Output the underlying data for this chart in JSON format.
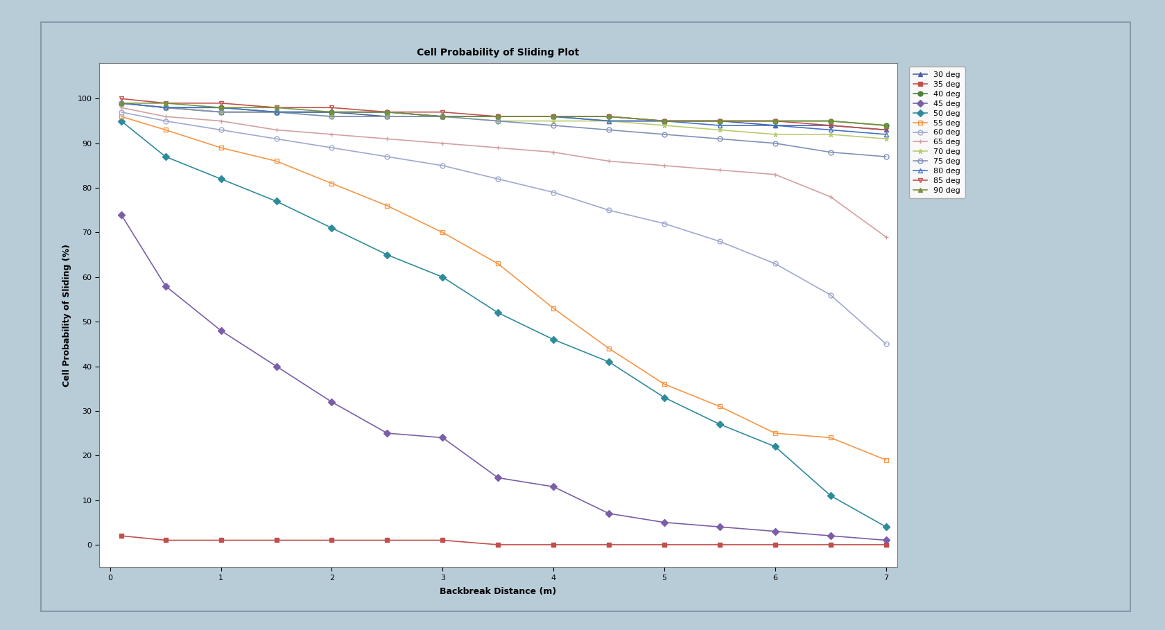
{
  "title": "Cell Probability of Sliding Plot",
  "xlabel": "Backbreak Distance (m)",
  "ylabel": "Cell Probability of Sliding (%)",
  "background_outer": "#b8ccd8",
  "background_inner": "#ffffff",
  "xlim": [
    -0.1,
    7.1
  ],
  "ylim": [
    -5,
    108
  ],
  "yticks": [
    0,
    10,
    20,
    30,
    40,
    50,
    60,
    70,
    80,
    90,
    100
  ],
  "xticks": [
    0,
    1,
    2,
    3,
    4,
    5,
    6,
    7
  ],
  "series": [
    {
      "label": "30 deg",
      "color": "#4a5fa5",
      "marker": "^",
      "markerfacecolor": "#4a5fa5",
      "markeredgecolor": "#4a5fa5",
      "x": [
        0.1,
        0.5,
        1.0,
        1.5,
        2.0,
        2.5,
        3.0,
        3.5,
        4.0,
        4.5,
        5.0,
        5.5,
        6.0,
        6.5,
        7.0
      ],
      "y": [
        99,
        98,
        97,
        97,
        97,
        96,
        96,
        96,
        96,
        95,
        95,
        95,
        94,
        94,
        93
      ]
    },
    {
      "label": "35 deg",
      "color": "#c0504d",
      "marker": "s",
      "markerfacecolor": "#c0504d",
      "markeredgecolor": "#c0504d",
      "x": [
        0.1,
        0.5,
        1.0,
        1.5,
        2.0,
        2.5,
        3.0,
        3.5,
        4.0,
        4.5,
        5.0,
        5.5,
        6.0,
        6.5,
        7.0
      ],
      "y": [
        2,
        1,
        1,
        1,
        1,
        1,
        1,
        0,
        0,
        0,
        0,
        0,
        0,
        0,
        0
      ]
    },
    {
      "label": "40 deg",
      "color": "#4e813b",
      "marker": "o",
      "markerfacecolor": "#4e813b",
      "markeredgecolor": "#4e813b",
      "x": [
        0.1,
        0.5,
        1.0,
        1.5,
        2.0,
        2.5,
        3.0,
        3.5,
        4.0,
        4.5,
        5.0,
        5.5,
        6.0,
        6.5,
        7.0
      ],
      "y": [
        99,
        98,
        98,
        97,
        97,
        97,
        96,
        96,
        96,
        96,
        95,
        95,
        95,
        95,
        94
      ]
    },
    {
      "label": "45 deg",
      "color": "#7b5ea7",
      "marker": "D",
      "markerfacecolor": "#7b5ea7",
      "markeredgecolor": "#7b5ea7",
      "x": [
        0.1,
        0.5,
        1.0,
        1.5,
        2.0,
        2.5,
        3.0,
        3.5,
        4.0,
        4.5,
        5.0,
        5.5,
        6.0,
        6.5,
        7.0
      ],
      "y": [
        74,
        58,
        48,
        40,
        32,
        25,
        24,
        15,
        13,
        7,
        5,
        4,
        3,
        2,
        1
      ]
    },
    {
      "label": "50 deg",
      "color": "#2e8b9c",
      "marker": "D",
      "markerfacecolor": "#2e8b9c",
      "markeredgecolor": "#2e8b9c",
      "x": [
        0.1,
        0.5,
        1.0,
        1.5,
        2.0,
        2.5,
        3.0,
        3.5,
        4.0,
        4.5,
        5.0,
        5.5,
        6.0,
        6.5,
        7.0
      ],
      "y": [
        95,
        87,
        82,
        77,
        71,
        65,
        60,
        52,
        46,
        41,
        33,
        27,
        22,
        11,
        4
      ]
    },
    {
      "label": "55 deg",
      "color": "#f79646",
      "marker": "s",
      "markerfacecolor": "none",
      "markeredgecolor": "#f79646",
      "x": [
        0.1,
        0.5,
        1.0,
        1.5,
        2.0,
        2.5,
        3.0,
        3.5,
        4.0,
        4.5,
        5.0,
        5.5,
        6.0,
        6.5,
        7.0
      ],
      "y": [
        96,
        93,
        89,
        86,
        81,
        76,
        70,
        63,
        53,
        44,
        36,
        31,
        25,
        24,
        19
      ]
    },
    {
      "label": "60 deg",
      "color": "#9fa8d0",
      "marker": "o",
      "markerfacecolor": "none",
      "markeredgecolor": "#9fa8d0",
      "x": [
        0.1,
        0.5,
        1.0,
        1.5,
        2.0,
        2.5,
        3.0,
        3.5,
        4.0,
        4.5,
        5.0,
        5.5,
        6.0,
        6.5,
        7.0
      ],
      "y": [
        97,
        95,
        93,
        91,
        89,
        87,
        85,
        82,
        79,
        75,
        72,
        68,
        63,
        56,
        45
      ]
    },
    {
      "label": "65 deg",
      "color": "#d4a0a0",
      "marker": "+",
      "markerfacecolor": "#d4a0a0",
      "markeredgecolor": "#d4a0a0",
      "x": [
        0.1,
        0.5,
        1.0,
        1.5,
        2.0,
        2.5,
        3.0,
        3.5,
        4.0,
        4.5,
        5.0,
        5.5,
        6.0,
        6.5,
        7.0
      ],
      "y": [
        98,
        96,
        95,
        93,
        92,
        91,
        90,
        89,
        88,
        86,
        85,
        84,
        83,
        78,
        69
      ]
    },
    {
      "label": "70 deg",
      "color": "#b8cc6e",
      "marker": "*",
      "markerfacecolor": "#b8cc6e",
      "markeredgecolor": "#b8cc6e",
      "x": [
        0.1,
        0.5,
        1.0,
        1.5,
        2.0,
        2.5,
        3.0,
        3.5,
        4.0,
        4.5,
        5.0,
        5.5,
        6.0,
        6.5,
        7.0
      ],
      "y": [
        99,
        98,
        97,
        97,
        96,
        96,
        96,
        95,
        95,
        95,
        94,
        93,
        92,
        92,
        91
      ]
    },
    {
      "label": "75 deg",
      "color": "#8090b8",
      "marker": "o",
      "markerfacecolor": "none",
      "markeredgecolor": "#8090b8",
      "x": [
        0.1,
        0.5,
        1.0,
        1.5,
        2.0,
        2.5,
        3.0,
        3.5,
        4.0,
        4.5,
        5.0,
        5.5,
        6.0,
        6.5,
        7.0
      ],
      "y": [
        99,
        98,
        97,
        97,
        96,
        96,
        96,
        95,
        94,
        93,
        92,
        91,
        90,
        88,
        87
      ]
    },
    {
      "label": "80 deg",
      "color": "#4472c4",
      "marker": "^",
      "markerfacecolor": "none",
      "markeredgecolor": "#4472c4",
      "x": [
        0.1,
        0.5,
        1.0,
        1.5,
        2.0,
        2.5,
        3.0,
        3.5,
        4.0,
        4.5,
        5.0,
        5.5,
        6.0,
        6.5,
        7.0
      ],
      "y": [
        99,
        98,
        98,
        97,
        97,
        97,
        96,
        96,
        96,
        95,
        95,
        94,
        94,
        93,
        92
      ]
    },
    {
      "label": "85 deg",
      "color": "#c0504d",
      "marker": "v",
      "markerfacecolor": "none",
      "markeredgecolor": "#c0504d",
      "x": [
        0.1,
        0.5,
        1.0,
        1.5,
        2.0,
        2.5,
        3.0,
        3.5,
        4.0,
        4.5,
        5.0,
        5.5,
        6.0,
        6.5,
        7.0
      ],
      "y": [
        100,
        99,
        99,
        98,
        98,
        97,
        97,
        96,
        96,
        96,
        95,
        95,
        95,
        94,
        93
      ]
    },
    {
      "label": "90 deg",
      "color": "#76923c",
      "marker": "^",
      "markerfacecolor": "#76923c",
      "markeredgecolor": "#76923c",
      "x": [
        0.1,
        0.5,
        1.0,
        1.5,
        2.0,
        2.5,
        3.0,
        3.5,
        4.0,
        4.5,
        5.0,
        5.5,
        6.0,
        6.5,
        7.0
      ],
      "y": [
        99,
        99,
        98,
        98,
        97,
        97,
        96,
        96,
        96,
        96,
        95,
        95,
        95,
        95,
        94
      ]
    }
  ]
}
